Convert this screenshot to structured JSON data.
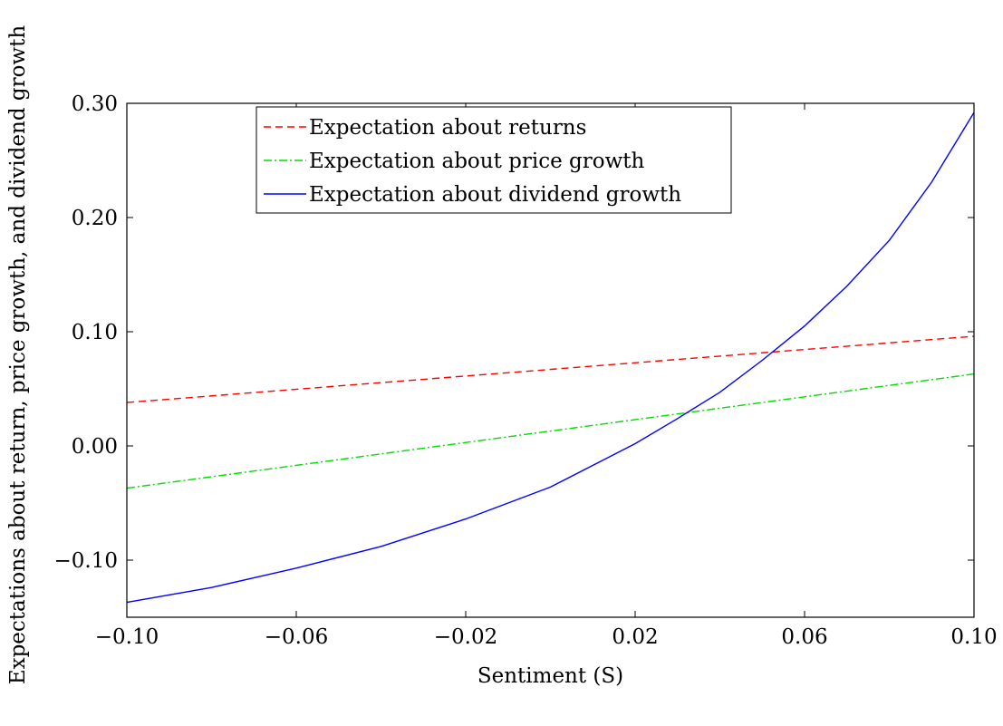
{
  "chart_data": {
    "type": "line",
    "xlabel": "Sentiment (S)",
    "ylabel": "Expectations about return, price growth, and dividend growth",
    "xlim": [
      -0.1,
      0.1
    ],
    "ylim": [
      -0.15,
      0.3
    ],
    "xticks": [
      -0.1,
      -0.06,
      -0.02,
      0.02,
      0.06,
      0.1
    ],
    "xtick_labels": [
      "−0.10",
      "−0.06",
      "−0.02",
      "0.02",
      "0.06",
      "0.10"
    ],
    "yticks": [
      -0.1,
      0.0,
      0.1,
      0.2,
      0.3
    ],
    "ytick_labels": [
      "−0.10",
      "0.00",
      "0.10",
      "0.20",
      "0.30"
    ],
    "grid": false,
    "legend_position": "top-center",
    "series": [
      {
        "name": "Expectation about returns",
        "style": "dashed",
        "color": "#ff0000",
        "x": [
          -0.1,
          0.1
        ],
        "y": [
          0.038,
          0.096
        ]
      },
      {
        "name": "Expectation about price growth",
        "style": "dash-dot",
        "color": "#00dd00",
        "x": [
          -0.1,
          0.1
        ],
        "y": [
          -0.037,
          0.063
        ]
      },
      {
        "name": "Expectation about dividend growth",
        "style": "solid",
        "color": "#0000ff",
        "x": [
          -0.1,
          -0.08,
          -0.06,
          -0.04,
          -0.02,
          0.0,
          0.02,
          0.03,
          0.04,
          0.05,
          0.06,
          0.07,
          0.08,
          0.09,
          0.1
        ],
        "y": [
          -0.137,
          -0.124,
          -0.107,
          -0.088,
          -0.064,
          -0.036,
          0.002,
          0.024,
          0.047,
          0.075,
          0.105,
          0.14,
          0.18,
          0.231,
          0.292
        ]
      }
    ]
  }
}
